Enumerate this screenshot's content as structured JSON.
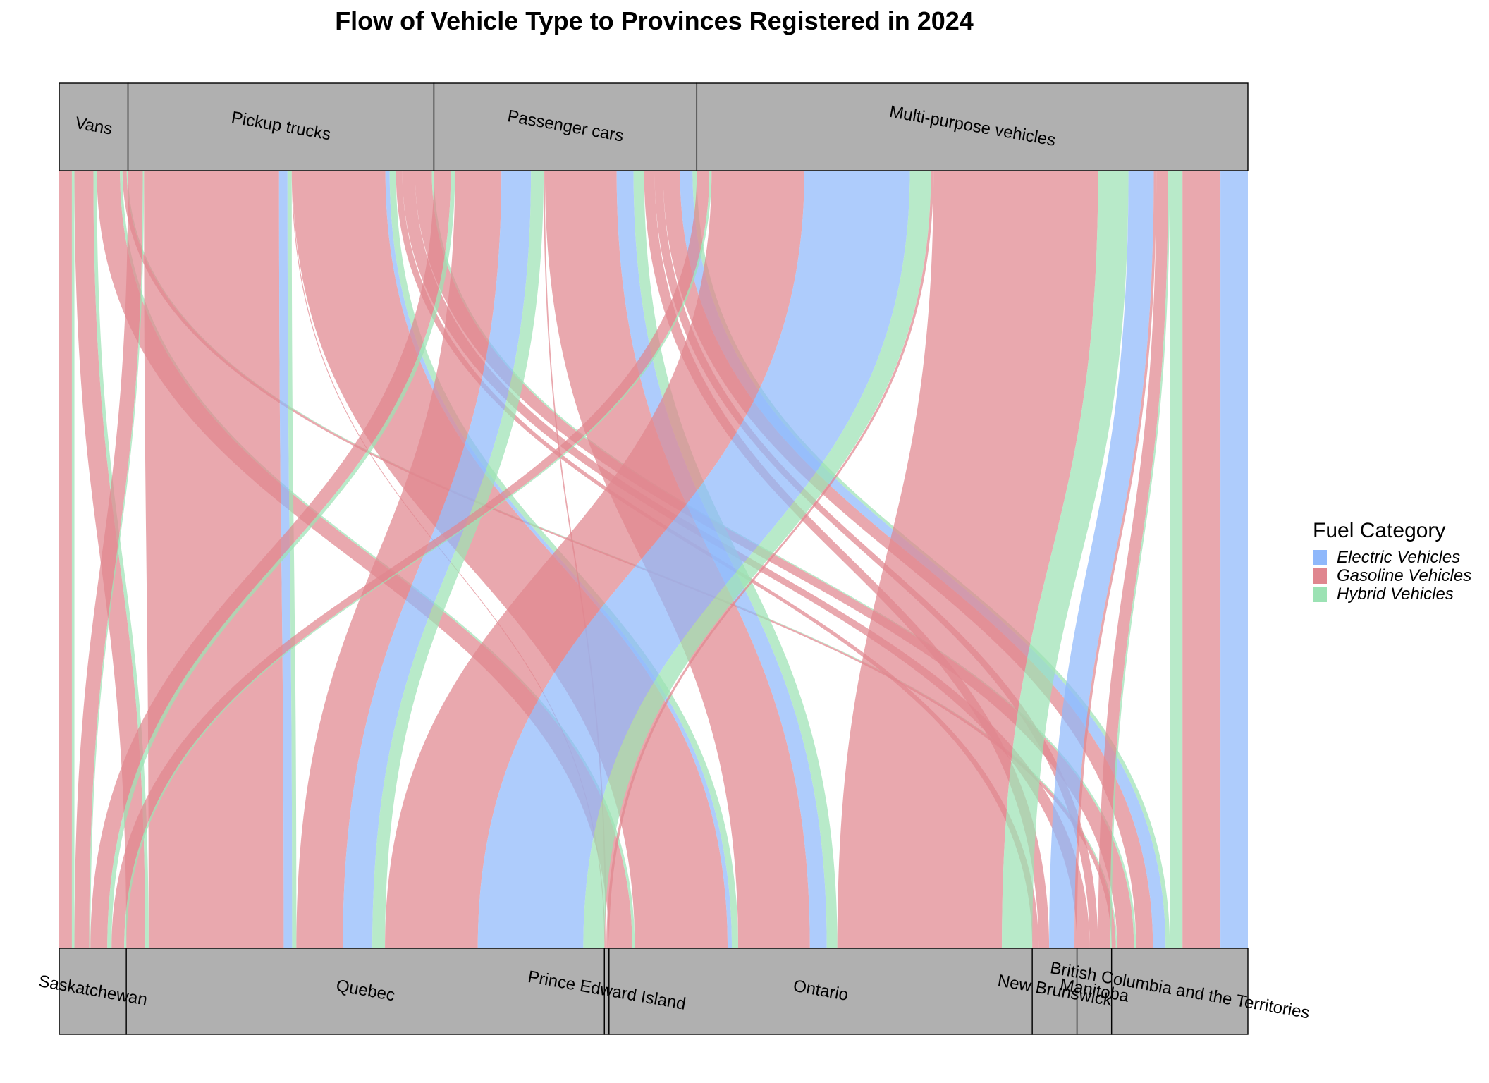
{
  "chart_data": {
    "type": "alluvial",
    "title": "Flow of Vehicle Type to Provinces Registered in 2024",
    "legend": {
      "title": "Fuel Category",
      "placement": "right",
      "items": [
        {
          "name": "Electric Vehicles",
          "color": "#8fb8fb"
        },
        {
          "name": "Gasoline Vehicles",
          "color": "#e0868f"
        },
        {
          "name": "Hybrid Vehicles",
          "color": "#9ce2b4"
        }
      ]
    },
    "vehicle_types": [
      "Vans",
      "Pickup trucks",
      "Passenger cars",
      "Multi-purpose vehicles"
    ],
    "provinces": [
      "Saskatchewan",
      "Quebec",
      "Prince Edward Island",
      "Ontario",
      "New Brunswick",
      "Manitoba",
      "British Columbia and the Territories"
    ],
    "flows": [
      {
        "vehicle": "Vans",
        "province": "Saskatchewan",
        "fuel": "Gasoline Vehicles",
        "value": 300
      },
      {
        "vehicle": "Vans",
        "province": "Saskatchewan",
        "fuel": "Hybrid Vehicles",
        "value": 60
      },
      {
        "vehicle": "Vans",
        "province": "Quebec",
        "fuel": "Gasoline Vehicles",
        "value": 450
      },
      {
        "vehicle": "Vans",
        "province": "Quebec",
        "fuel": "Hybrid Vehicles",
        "value": 80
      },
      {
        "vehicle": "Vans",
        "province": "Ontario",
        "fuel": "Gasoline Vehicles",
        "value": 550
      },
      {
        "vehicle": "Vans",
        "province": "Ontario",
        "fuel": "Hybrid Vehicles",
        "value": 60
      },
      {
        "vehicle": "Vans",
        "province": "British Columbia and the Territories",
        "fuel": "Gasoline Vehicles",
        "value": 100
      },
      {
        "vehicle": "Vans",
        "province": "British Columbia and the Territories",
        "fuel": "Hybrid Vehicles",
        "value": 30
      },
      {
        "vehicle": "Pickup trucks",
        "province": "Saskatchewan",
        "fuel": "Gasoline Vehicles",
        "value": 350
      },
      {
        "vehicle": "Pickup trucks",
        "province": "Saskatchewan",
        "fuel": "Hybrid Vehicles",
        "value": 30
      },
      {
        "vehicle": "Pickup trucks",
        "province": "Quebec",
        "fuel": "Gasoline Vehicles",
        "value": 3200
      },
      {
        "vehicle": "Pickup trucks",
        "province": "Quebec",
        "fuel": "Electric Vehicles",
        "value": 200
      },
      {
        "vehicle": "Pickup trucks",
        "province": "Quebec",
        "fuel": "Hybrid Vehicles",
        "value": 100
      },
      {
        "vehicle": "Pickup trucks",
        "province": "Prince Edward Island",
        "fuel": "Gasoline Vehicles",
        "value": 20
      },
      {
        "vehicle": "Pickup trucks",
        "province": "Ontario",
        "fuel": "Gasoline Vehicles",
        "value": 2200
      },
      {
        "vehicle": "Pickup trucks",
        "province": "Ontario",
        "fuel": "Electric Vehicles",
        "value": 100
      },
      {
        "vehicle": "Pickup trucks",
        "province": "Ontario",
        "fuel": "Hybrid Vehicles",
        "value": 150
      },
      {
        "vehicle": "Pickup trucks",
        "province": "New Brunswick",
        "fuel": "Gasoline Vehicles",
        "value": 150
      },
      {
        "vehicle": "Pickup trucks",
        "province": "Manitoba",
        "fuel": "Gasoline Vehicles",
        "value": 300
      },
      {
        "vehicle": "Pickup trucks",
        "province": "British Columbia and the Territories",
        "fuel": "Gasoline Vehicles",
        "value": 400
      },
      {
        "vehicle": "Pickup trucks",
        "province": "British Columbia and the Territories",
        "fuel": "Hybrid Vehicles",
        "value": 50
      },
      {
        "vehicle": "Passenger cars",
        "province": "Saskatchewan",
        "fuel": "Gasoline Vehicles",
        "value": 400
      },
      {
        "vehicle": "Passenger cars",
        "province": "Saskatchewan",
        "fuel": "Hybrid Vehicles",
        "value": 100
      },
      {
        "vehicle": "Passenger cars",
        "province": "Quebec",
        "fuel": "Gasoline Vehicles",
        "value": 1100
      },
      {
        "vehicle": "Passenger cars",
        "province": "Quebec",
        "fuel": "Electric Vehicles",
        "value": 700
      },
      {
        "vehicle": "Passenger cars",
        "province": "Quebec",
        "fuel": "Hybrid Vehicles",
        "value": 300
      },
      {
        "vehicle": "Passenger cars",
        "province": "Prince Edward Island",
        "fuel": "Gasoline Vehicles",
        "value": 30
      },
      {
        "vehicle": "Passenger cars",
        "province": "Ontario",
        "fuel": "Gasoline Vehicles",
        "value": 1700
      },
      {
        "vehicle": "Passenger cars",
        "province": "Ontario",
        "fuel": "Electric Vehicles",
        "value": 400
      },
      {
        "vehicle": "Passenger cars",
        "province": "Ontario",
        "fuel": "Hybrid Vehicles",
        "value": 250
      },
      {
        "vehicle": "Passenger cars",
        "province": "New Brunswick",
        "fuel": "Gasoline Vehicles",
        "value": 250
      },
      {
        "vehicle": "Passenger cars",
        "province": "Manitoba",
        "fuel": "Gasoline Vehicles",
        "value": 200
      },
      {
        "vehicle": "Passenger cars",
        "province": "British Columbia and the Territories",
        "fuel": "Gasoline Vehicles",
        "value": 400
      },
      {
        "vehicle": "Passenger cars",
        "province": "British Columbia and the Territories",
        "fuel": "Electric Vehicles",
        "value": 300
      },
      {
        "vehicle": "Passenger cars",
        "province": "British Columbia and the Territories",
        "fuel": "Hybrid Vehicles",
        "value": 100
      },
      {
        "vehicle": "Multi-purpose vehicles",
        "province": "Saskatchewan",
        "fuel": "Gasoline Vehicles",
        "value": 300
      },
      {
        "vehicle": "Multi-purpose vehicles",
        "province": "Saskatchewan",
        "fuel": "Hybrid Vehicles",
        "value": 50
      },
      {
        "vehicle": "Multi-purpose vehicles",
        "province": "Quebec",
        "fuel": "Gasoline Vehicles",
        "value": 2200
      },
      {
        "vehicle": "Multi-purpose vehicles",
        "province": "Quebec",
        "fuel": "Electric Vehicles",
        "value": 2500
      },
      {
        "vehicle": "Multi-purpose vehicles",
        "province": "Quebec",
        "fuel": "Hybrid Vehicles",
        "value": 500
      },
      {
        "vehicle": "Multi-purpose vehicles",
        "province": "Prince Edward Island",
        "fuel": "Gasoline Vehicles",
        "value": 60
      },
      {
        "vehicle": "Multi-purpose vehicles",
        "province": "Ontario",
        "fuel": "Gasoline Vehicles",
        "value": 3900
      },
      {
        "vehicle": "Multi-purpose vehicles",
        "province": "Ontario",
        "fuel": "Hybrid Vehicles",
        "value": 720
      },
      {
        "vehicle": "Multi-purpose vehicles",
        "province": "New Brunswick",
        "fuel": "Electric Vehicles",
        "value": 600
      },
      {
        "vehicle": "Multi-purpose vehicles",
        "province": "New Brunswick",
        "fuel": "Gasoline Vehicles",
        "value": 60
      },
      {
        "vehicle": "Multi-purpose vehicles",
        "province": "Manitoba",
        "fuel": "Gasoline Vehicles",
        "value": 280
      },
      {
        "vehicle": "Multi-purpose vehicles",
        "province": "Manitoba",
        "fuel": "Hybrid Vehicles",
        "value": 40
      },
      {
        "vehicle": "Multi-purpose vehicles",
        "province": "British Columbia and the Territories",
        "fuel": "Hybrid Vehicles",
        "value": 300
      },
      {
        "vehicle": "Multi-purpose vehicles",
        "province": "British Columbia and the Territories",
        "fuel": "Gasoline Vehicles",
        "value": 900
      },
      {
        "vehicle": "Multi-purpose vehicles",
        "province": "British Columbia and the Territories",
        "fuel": "Electric Vehicles",
        "value": 650
      }
    ]
  }
}
